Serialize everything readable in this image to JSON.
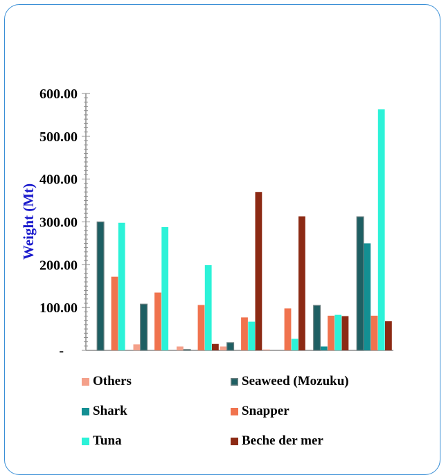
{
  "chart_data": {
    "type": "bar",
    "title": "",
    "xlabel": "",
    "ylabel": "Weight (Mt)",
    "ylabel_color": "#1a1acc",
    "ylim": [
      0,
      600
    ],
    "yticks": [
      0,
      100,
      200,
      300,
      400,
      500,
      600
    ],
    "ytick_labels": [
      "-",
      "100.00",
      "200.00",
      "300.00",
      "400.00",
      "500.00",
      "600.00"
    ],
    "categories": [
      "",
      "",
      "",
      "",
      "",
      "",
      ""
    ],
    "grid": false,
    "legend_position": "bottom",
    "series": [
      {
        "name": "Others",
        "color": "#f4a08a",
        "values": [
          0,
          14,
          9,
          9,
          2,
          0,
          0
        ]
      },
      {
        "name": "Seaweed (Mozuku)",
        "color": "#1e5f63",
        "values": [
          300,
          108,
          2,
          18,
          0,
          105,
          312
        ]
      },
      {
        "name": "Shark",
        "color": "#138f93",
        "values": [
          0,
          0,
          0,
          0,
          0,
          9,
          250
        ]
      },
      {
        "name": "Snapper",
        "color": "#f0734e",
        "values": [
          172,
          135,
          106,
          77,
          98,
          81,
          81
        ]
      },
      {
        "name": "Tuna",
        "color": "#2cf2d8",
        "values": [
          298,
          288,
          199,
          67,
          27,
          83,
          563
        ]
      },
      {
        "name": "Beche der mer",
        "color": "#8c2a14",
        "values": [
          0,
          0,
          15,
          370,
          313,
          80,
          68
        ]
      }
    ]
  }
}
